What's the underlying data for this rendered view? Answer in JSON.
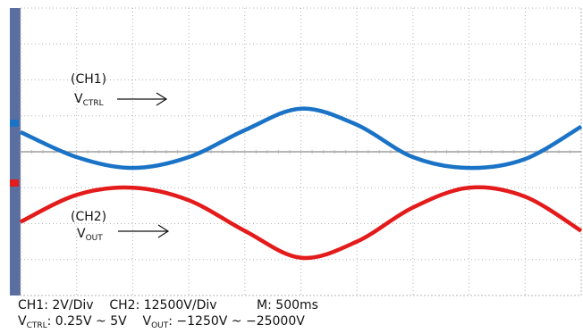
{
  "colors": {
    "ch1": "#1a73c6",
    "ch2": "#e31b1b",
    "grid": "#b5b5b5",
    "side_bar": "#5a6ea0",
    "ch1_marker": "#1a73c6",
    "ch2_marker": "#e31b1b"
  },
  "channel_labels": {
    "ch1_tag": "(CH1)",
    "ch1_name_main": "V",
    "ch1_name_sub": "CTRL",
    "ch2_tag": "(CH2)",
    "ch2_name_main": "V",
    "ch2_name_sub": "OUT"
  },
  "settings": {
    "ch1_scale": "CH1: 2V/Div",
    "ch2_scale": "CH2: 12500V/Div",
    "timebase": "M: 500ms",
    "vctrl_main": "V",
    "vctrl_sub": "CTRL",
    "vctrl_range": ": 0.25V ~ 5V",
    "vout_main": "V",
    "vout_sub": "OUT",
    "vout_range": ": −1250V ~ −25000V"
  },
  "chart_data": {
    "type": "line",
    "grid": true,
    "divisions": {
      "x": 10,
      "y": 8
    },
    "x_unit_per_div_ms": 500,
    "series": [
      {
        "name": "CH1",
        "channel": "CH1",
        "unit_per_div": 2,
        "unit": "V",
        "x_ms": [
          0,
          500,
          1000,
          1500,
          2000,
          2500,
          3000,
          3500,
          4000,
          4500,
          5000
        ],
        "y_div": [
          0.55,
          -0.15,
          -0.45,
          -0.15,
          0.6,
          1.2,
          0.75,
          -0.15,
          -0.45,
          -0.2,
          0.7
        ]
      },
      {
        "name": "CH2",
        "channel": "CH2",
        "unit_per_div": 12500,
        "unit": "V",
        "x_ms": [
          0,
          500,
          1000,
          1500,
          2000,
          2500,
          3000,
          3500,
          4000,
          4500,
          5000
        ],
        "y_div": [
          -1.95,
          -1.2,
          -1.0,
          -1.35,
          -2.2,
          -2.95,
          -2.5,
          -1.55,
          -1.0,
          -1.25,
          -2.2
        ]
      }
    ]
  }
}
